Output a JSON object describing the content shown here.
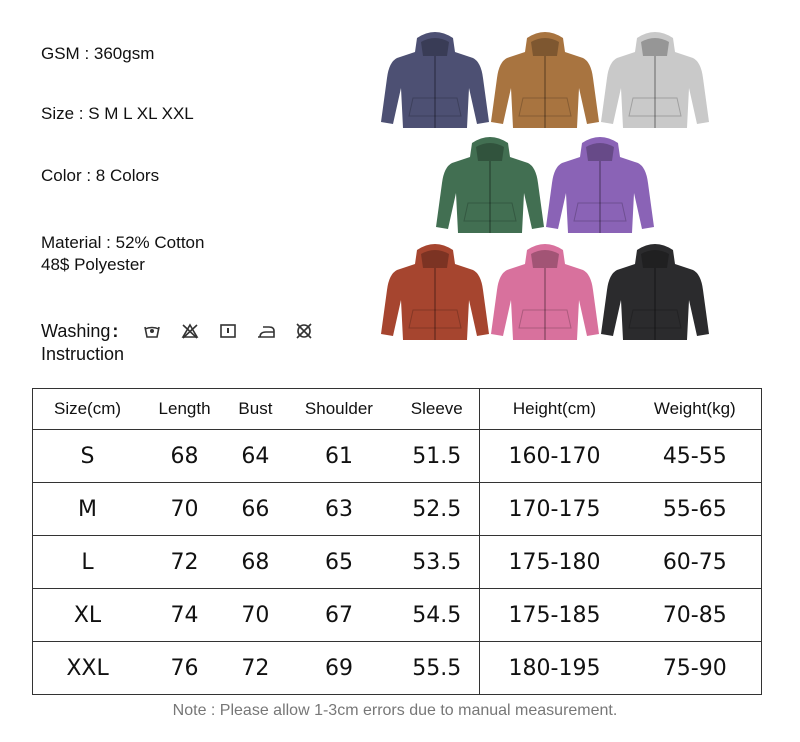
{
  "specs": {
    "gsm": "GSM : 360gsm",
    "size": "Size : S M L XL XXL",
    "color": "Color : 8 Colors",
    "material_line1": "Material : 52% Cotton",
    "material_line2": "48$ Polyester",
    "washing_line1": "Washing",
    "washing_colon": ":",
    "washing_line2": "Instruction",
    "washing_icons": [
      "hand-wash-icon",
      "no-bleach-icon",
      "tumble-dry-icon",
      "iron-icon",
      "no-dry-clean-icon"
    ]
  },
  "hoodie_colors": [
    "#4d5073",
    "#a87440",
    "#c9c9c9",
    "#426f52",
    "#8a63b6",
    "#a6452f",
    "#d8719d",
    "#2b2b2d"
  ],
  "table": {
    "headers": [
      "Size(cm)",
      "Length",
      "Bust",
      "Shoulder",
      "Sleeve",
      "Height(cm)",
      "Weight(kg)"
    ],
    "rows": [
      [
        "S",
        "68",
        "64",
        "61",
        "51.5",
        "160-170",
        "45-55"
      ],
      [
        "M",
        "70",
        "66",
        "63",
        "52.5",
        "170-175",
        "55-65"
      ],
      [
        "L",
        "72",
        "68",
        "65",
        "53.5",
        "175-180",
        "60-75"
      ],
      [
        "XL",
        "74",
        "70",
        "67",
        "54.5",
        "175-185",
        "70-85"
      ],
      [
        "XXL",
        "76",
        "72",
        "69",
        "55.5",
        "180-195",
        "75-90"
      ]
    ]
  },
  "note": "Note : Please allow 1-3cm errors due to manual measurement."
}
